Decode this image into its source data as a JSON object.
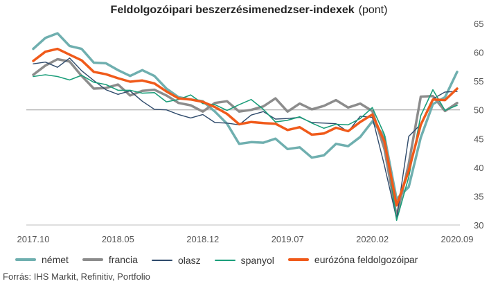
{
  "header": {
    "title": "Feldolgozóipari beszerzésimenedzser-indexek",
    "unit": "(pont)"
  },
  "source": "Forrás: IHS Markit, Refinitiv, Portfolio",
  "chart_data": {
    "type": "line",
    "title": "Feldolgozóipari beszerzésimenedzser-indexek",
    "subtitle": "(pont)",
    "ylim": [
      30,
      65
    ],
    "yticks": [
      30,
      35,
      40,
      45,
      50,
      55,
      60,
      65
    ],
    "y_axis_side": "right",
    "reference_line": 50,
    "grid": false,
    "legend_position": "bottom",
    "x_tick_labels": [
      "2017.10",
      "2018.05",
      "2018.12",
      "2019.07",
      "2020.02",
      "2020.09"
    ],
    "x": [
      "2017.10",
      "2017.11",
      "2017.12",
      "2018.01",
      "2018.02",
      "2018.03",
      "2018.04",
      "2018.05",
      "2018.06",
      "2018.07",
      "2018.08",
      "2018.09",
      "2018.10",
      "2018.11",
      "2018.12",
      "2019.01",
      "2019.02",
      "2019.03",
      "2019.04",
      "2019.05",
      "2019.06",
      "2019.07",
      "2019.08",
      "2019.09",
      "2019.10",
      "2019.11",
      "2019.12",
      "2020.01",
      "2020.02",
      "2020.03",
      "2020.04",
      "2020.05",
      "2020.06",
      "2020.07",
      "2020.08",
      "2020.09"
    ],
    "series": [
      {
        "name": "német",
        "color": "#6fafaf",
        "width": 3.5,
        "values": [
          60.6,
          62.5,
          63.3,
          61.1,
          60.6,
          58.2,
          58.1,
          56.9,
          55.9,
          56.9,
          55.9,
          53.7,
          52.2,
          51.8,
          51.5,
          49.7,
          47.6,
          44.1,
          44.4,
          44.3,
          45.0,
          43.2,
          43.5,
          41.7,
          42.1,
          44.1,
          43.7,
          45.3,
          48.0,
          45.4,
          34.5,
          36.6,
          45.2,
          51.0,
          52.2,
          56.6
        ]
      },
      {
        "name": "francia",
        "color": "#8c8c8c",
        "width": 3.5,
        "values": [
          56.1,
          57.7,
          58.8,
          58.4,
          55.9,
          53.7,
          53.8,
          54.4,
          52.5,
          53.3,
          53.5,
          52.5,
          51.2,
          50.8,
          49.7,
          51.2,
          51.5,
          49.7,
          50.0,
          50.6,
          52.0,
          49.7,
          51.1,
          50.1,
          50.7,
          51.7,
          50.4,
          51.1,
          49.8,
          43.2,
          31.5,
          40.6,
          52.3,
          52.4,
          49.8,
          51.2
        ]
      },
      {
        "name": "olasz",
        "color": "#2e4a6b",
        "width": 1.4,
        "values": [
          58.0,
          58.3,
          57.4,
          59.0,
          56.8,
          55.1,
          53.5,
          52.7,
          53.3,
          51.5,
          50.1,
          50.0,
          49.2,
          48.6,
          49.2,
          47.8,
          47.7,
          47.4,
          49.1,
          49.7,
          48.4,
          48.5,
          48.7,
          47.8,
          47.7,
          47.6,
          46.2,
          48.9,
          48.7,
          40.3,
          31.1,
          45.4,
          47.5,
          51.9,
          53.1,
          53.2
        ]
      },
      {
        "name": "spanyol",
        "color": "#1b9e7a",
        "width": 1.6,
        "values": [
          55.8,
          56.1,
          55.8,
          55.2,
          56.0,
          54.8,
          54.4,
          53.4,
          53.4,
          52.9,
          53.0,
          51.4,
          51.8,
          52.6,
          51.1,
          50.9,
          49.9,
          50.9,
          51.8,
          50.1,
          47.9,
          48.2,
          48.8,
          47.7,
          46.8,
          47.5,
          47.4,
          48.5,
          50.4,
          45.7,
          30.8,
          38.3,
          49.0,
          53.5,
          49.9,
          50.8
        ]
      },
      {
        "name": "eurózóna feldolgozóipar",
        "color": "#f05a1a",
        "width": 3.5,
        "values": [
          58.5,
          60.1,
          60.6,
          59.6,
          58.6,
          56.6,
          56.2,
          55.5,
          54.9,
          55.1,
          54.6,
          53.2,
          52.0,
          51.8,
          51.4,
          50.5,
          49.3,
          47.5,
          47.9,
          47.7,
          47.6,
          46.5,
          47.0,
          45.7,
          45.9,
          46.9,
          46.3,
          47.9,
          49.2,
          44.5,
          33.4,
          39.4,
          47.4,
          51.8,
          51.7,
          53.7
        ]
      }
    ]
  }
}
